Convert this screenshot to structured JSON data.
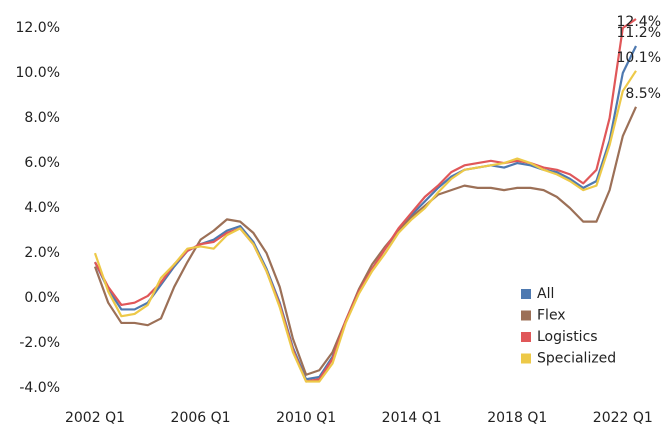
{
  "chart_data": {
    "type": "line",
    "categories": [
      "2002 Q1",
      null,
      null,
      null,
      null,
      null,
      null,
      null,
      "2006 Q1",
      null,
      null,
      null,
      null,
      null,
      null,
      null,
      "2010 Q1",
      null,
      null,
      null,
      null,
      null,
      null,
      null,
      "2014 Q1",
      null,
      null,
      null,
      null,
      null,
      null,
      null,
      "2018 Q1",
      null,
      null,
      null,
      null,
      null,
      null,
      null,
      "2022 Q1",
      null
    ],
    "ylim": [
      -4.5,
      12.8
    ],
    "yticks": [
      {
        "value": -4,
        "label": "-4.0%"
      },
      {
        "value": -2,
        "label": "-2.0%"
      },
      {
        "value": 0,
        "label": "0.0%"
      },
      {
        "value": 2,
        "label": "2.0%"
      },
      {
        "value": 4,
        "label": "4.0%"
      },
      {
        "value": 6,
        "label": "6.0%"
      },
      {
        "value": 8,
        "label": "8.0%"
      },
      {
        "value": 10,
        "label": "10.0%"
      },
      {
        "value": 12,
        "label": "12.0%"
      }
    ],
    "legend": "bottom-right",
    "series": [
      {
        "name": "All",
        "color": "#4e79b0",
        "values": [
          1.6,
          0.4,
          -0.5,
          -0.5,
          -0.2,
          0.6,
          1.4,
          2.1,
          2.4,
          2.6,
          3.0,
          3.2,
          2.5,
          1.3,
          -0.2,
          -2.2,
          -3.6,
          -3.5,
          -2.6,
          -1.0,
          0.3,
          1.3,
          2.2,
          3.0,
          3.7,
          4.3,
          4.9,
          5.4,
          5.7,
          5.8,
          5.9,
          5.8,
          6.0,
          5.9,
          5.7,
          5.6,
          5.3,
          4.9,
          5.2,
          7.0,
          10.0,
          11.2
        ],
        "value_labels": [
          null,
          null,
          null,
          null,
          null,
          null,
          null,
          null,
          null,
          null,
          null,
          null,
          null,
          null,
          null,
          null,
          null,
          null,
          null,
          null,
          null,
          null,
          null,
          null,
          null,
          null,
          null,
          null,
          null,
          null,
          null,
          null,
          null,
          null,
          null,
          null,
          null,
          null,
          null,
          null,
          null,
          "11.2%"
        ]
      },
      {
        "name": "Flex",
        "color": "#9c7057",
        "values": [
          1.4,
          -0.2,
          -1.1,
          -1.1,
          -1.2,
          -0.9,
          0.5,
          1.6,
          2.6,
          3.0,
          3.5,
          3.4,
          2.9,
          2.0,
          0.5,
          -1.8,
          -3.4,
          -3.2,
          -2.4,
          -1.0,
          0.4,
          1.5,
          2.3,
          3.0,
          3.6,
          4.1,
          4.6,
          4.8,
          5.0,
          4.9,
          4.9,
          4.8,
          4.9,
          4.9,
          4.8,
          4.5,
          4.0,
          3.4,
          3.4,
          4.8,
          7.2,
          8.5
        ],
        "value_labels": [
          null,
          null,
          null,
          null,
          null,
          null,
          null,
          null,
          null,
          null,
          null,
          null,
          null,
          null,
          null,
          null,
          null,
          null,
          null,
          null,
          null,
          null,
          null,
          null,
          null,
          null,
          null,
          null,
          null,
          null,
          null,
          null,
          null,
          null,
          null,
          null,
          null,
          null,
          null,
          null,
          null,
          "8.5%"
        ]
      },
      {
        "name": "Logistics",
        "color": "#e05759",
        "values": [
          1.6,
          0.5,
          -0.3,
          -0.2,
          0.1,
          0.7,
          1.5,
          2.1,
          2.4,
          2.5,
          2.9,
          3.1,
          2.4,
          1.2,
          -0.3,
          -2.3,
          -3.7,
          -3.6,
          -2.7,
          -1.0,
          0.3,
          1.3,
          2.2,
          3.1,
          3.8,
          4.5,
          5.0,
          5.6,
          5.9,
          6.0,
          6.1,
          6.0,
          6.1,
          6.0,
          5.8,
          5.7,
          5.5,
          5.1,
          5.7,
          8.0,
          12.0,
          12.4
        ],
        "value_labels": [
          null,
          null,
          null,
          null,
          null,
          null,
          null,
          null,
          null,
          null,
          null,
          null,
          null,
          null,
          null,
          null,
          null,
          null,
          null,
          null,
          null,
          null,
          null,
          null,
          null,
          null,
          null,
          null,
          null,
          null,
          null,
          null,
          null,
          null,
          null,
          null,
          null,
          null,
          null,
          null,
          null,
          "12.4%"
        ]
      },
      {
        "name": "Specialized",
        "color": "#edc948",
        "values": [
          2.0,
          0.3,
          -0.8,
          -0.7,
          -0.3,
          0.9,
          1.5,
          2.2,
          2.3,
          2.2,
          2.8,
          3.1,
          2.4,
          1.2,
          -0.4,
          -2.4,
          -3.7,
          -3.7,
          -2.9,
          -1.1,
          0.2,
          1.2,
          2.0,
          2.9,
          3.5,
          4.0,
          4.7,
          5.3,
          5.7,
          5.8,
          5.9,
          6.0,
          6.2,
          6.0,
          5.7,
          5.5,
          5.2,
          4.8,
          5.0,
          6.8,
          9.2,
          10.1
        ],
        "value_labels": [
          null,
          null,
          null,
          null,
          null,
          null,
          null,
          null,
          null,
          null,
          null,
          null,
          null,
          null,
          null,
          null,
          null,
          null,
          null,
          null,
          null,
          null,
          null,
          null,
          null,
          null,
          null,
          null,
          null,
          null,
          null,
          null,
          null,
          null,
          null,
          null,
          null,
          null,
          null,
          null,
          null,
          "10.1%"
        ]
      }
    ]
  }
}
